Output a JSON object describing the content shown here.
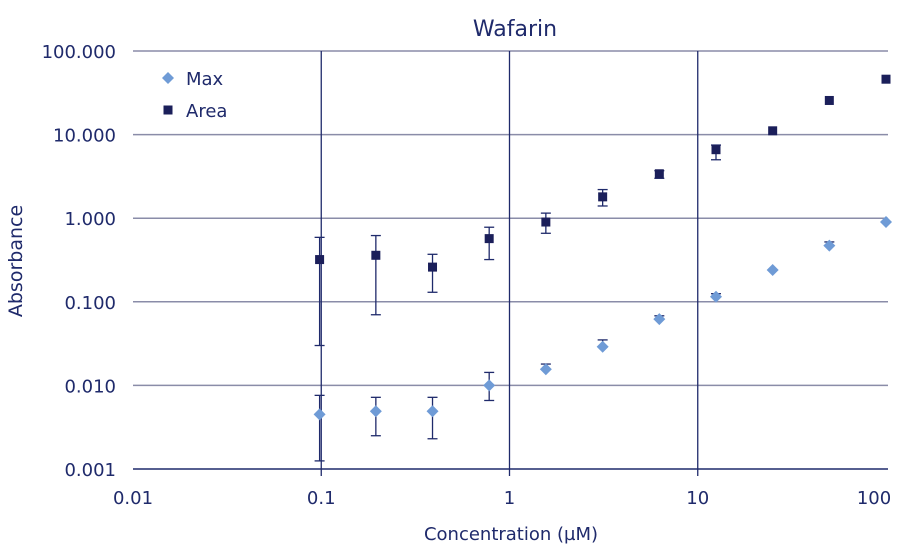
{
  "chart_data": {
    "type": "scatter",
    "title": "Wafarin",
    "xlabel": "Concentration (µM)",
    "ylabel": "Absorbance",
    "x_scale": "log",
    "y_scale": "log",
    "xlim": [
      0.01,
      100
    ],
    "ylim": [
      0.001,
      100
    ],
    "x_ticks": [
      0.01,
      0.1,
      1,
      10,
      100
    ],
    "x_tick_labels": [
      "0.01",
      "0.1",
      "1",
      "10",
      "100"
    ],
    "y_ticks": [
      0.001,
      0.01,
      0.1,
      1,
      10,
      100
    ],
    "y_tick_labels": [
      "0.001",
      "0.010",
      "0.100",
      "1.000",
      "10.000",
      "100.000"
    ],
    "grid": true,
    "legend_position": "top-left",
    "x": [
      0.098,
      0.195,
      0.39,
      0.78,
      1.56,
      3.125,
      6.25,
      12.5,
      25,
      50,
      100
    ],
    "series": [
      {
        "name": "Max",
        "marker": "diamond",
        "color": "#6f9bd6",
        "values": [
          0.0045,
          0.0049,
          0.0049,
          0.01,
          0.0156,
          0.029,
          0.062,
          0.115,
          0.24,
          0.47,
          0.9
        ],
        "error_low": [
          0.00125,
          0.0025,
          0.0023,
          0.0066,
          null,
          null,
          null,
          null,
          null,
          null,
          null
        ],
        "error_high": [
          0.0076,
          0.0072,
          0.0072,
          0.0143,
          0.018,
          0.035,
          0.068,
          0.125,
          null,
          0.52,
          null
        ]
      },
      {
        "name": "Area",
        "marker": "square",
        "color": "#1b1f5a",
        "values": [
          0.32,
          0.36,
          0.26,
          0.57,
          0.9,
          1.8,
          3.4,
          6.6,
          11.1,
          25.6,
          46
        ],
        "error_low": [
          0.03,
          0.07,
          0.13,
          0.32,
          0.66,
          1.4,
          3.0,
          5.0,
          null,
          null,
          null
        ],
        "error_high": [
          0.59,
          0.62,
          0.37,
          0.78,
          1.15,
          2.2,
          3.7,
          7.5,
          null,
          null,
          null
        ]
      }
    ]
  }
}
